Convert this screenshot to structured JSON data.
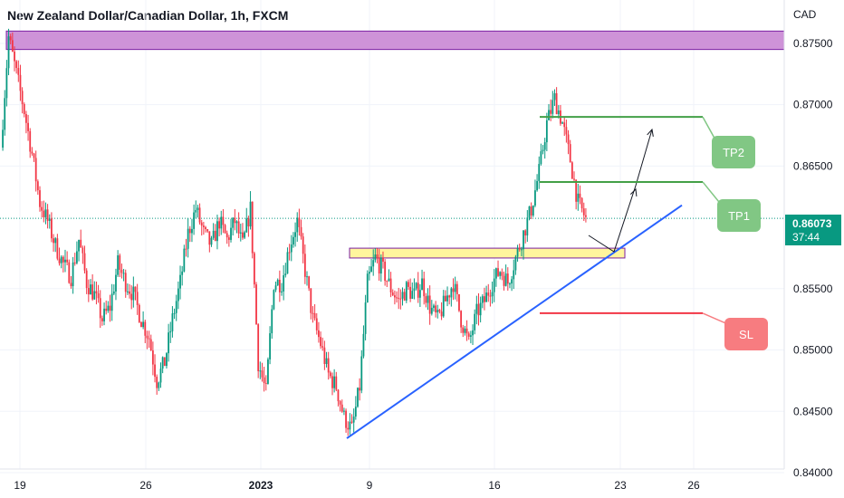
{
  "title": "New Zealand Dollar/Canadian Dollar, 1h, FXCM",
  "currency": "CAD",
  "price_badge": {
    "price": "0.86073",
    "countdown": "37:44",
    "color": "#089981"
  },
  "colors": {
    "up": "#089981",
    "down": "#f23645",
    "trend": "#2962ff",
    "resist_fill": "#ce93d8",
    "resist_stroke": "#7b1fa2",
    "support_fill": "#fff59d",
    "support_stroke": "#7b1fa2",
    "tp_line": "#43a047",
    "tp_badge": "#81c784",
    "sl_line": "#f23645",
    "sl_badge": "#f77c80"
  },
  "chart_data": {
    "type": "candlestick",
    "title": "New Zealand Dollar/Canadian Dollar, 1h, FXCM",
    "ylim": [
      0.84,
      0.8775
    ],
    "y_ticks": [
      {
        "value": 0.875,
        "label": "0.87500"
      },
      {
        "value": 0.87,
        "label": "0.87000"
      },
      {
        "value": 0.865,
        "label": "0.86500"
      },
      {
        "value": 0.855,
        "label": "0.85500"
      },
      {
        "value": 0.85,
        "label": "0.85000"
      },
      {
        "value": 0.845,
        "label": "0.84500"
      },
      {
        "value": 0.84,
        "label": "0.84000"
      }
    ],
    "x_ticks": [
      {
        "label": "19",
        "bold": false
      },
      {
        "label": "26",
        "bold": false
      },
      {
        "label": "2023",
        "bold": true
      },
      {
        "label": "9",
        "bold": false
      },
      {
        "label": "16",
        "bold": false
      },
      {
        "label": "23",
        "bold": false
      },
      {
        "label": "26",
        "bold": false
      }
    ],
    "last_price": 0.86073,
    "price_path": [
      0.8665,
      0.8755,
      0.8725,
      0.8695,
      0.866,
      0.862,
      0.8605,
      0.8585,
      0.857,
      0.856,
      0.859,
      0.8555,
      0.8545,
      0.8525,
      0.8535,
      0.857,
      0.8555,
      0.8545,
      0.8525,
      0.851,
      0.8475,
      0.849,
      0.8525,
      0.8555,
      0.8595,
      0.8615,
      0.8595,
      0.8585,
      0.8605,
      0.859,
      0.8605,
      0.8585,
      0.8615,
      0.849,
      0.8465,
      0.8555,
      0.8555,
      0.8585,
      0.8605,
      0.8565,
      0.8525,
      0.8505,
      0.848,
      0.847,
      0.8445,
      0.8435,
      0.847,
      0.8555,
      0.8575,
      0.8565,
      0.855,
      0.854,
      0.855,
      0.8545,
      0.8555,
      0.8535,
      0.8525,
      0.854,
      0.8555,
      0.8525,
      0.8505,
      0.853,
      0.854,
      0.8555,
      0.8565,
      0.8555,
      0.8575,
      0.8595,
      0.8615,
      0.8645,
      0.8685,
      0.8705,
      0.8685,
      0.8655,
      0.862,
      0.8607
    ],
    "annotations": {
      "resistance_zone": [
        0.8745,
        0.876
      ],
      "support_zone": [
        0.8575,
        0.8583
      ],
      "trendline": {
        "from": 0.8428,
        "to": 0.8618
      },
      "tp2": {
        "label": "TP2",
        "price": 0.869
      },
      "tp1": {
        "label": "TP1",
        "price": 0.8637
      },
      "sl": {
        "label": "SL",
        "price": 0.853
      }
    }
  }
}
